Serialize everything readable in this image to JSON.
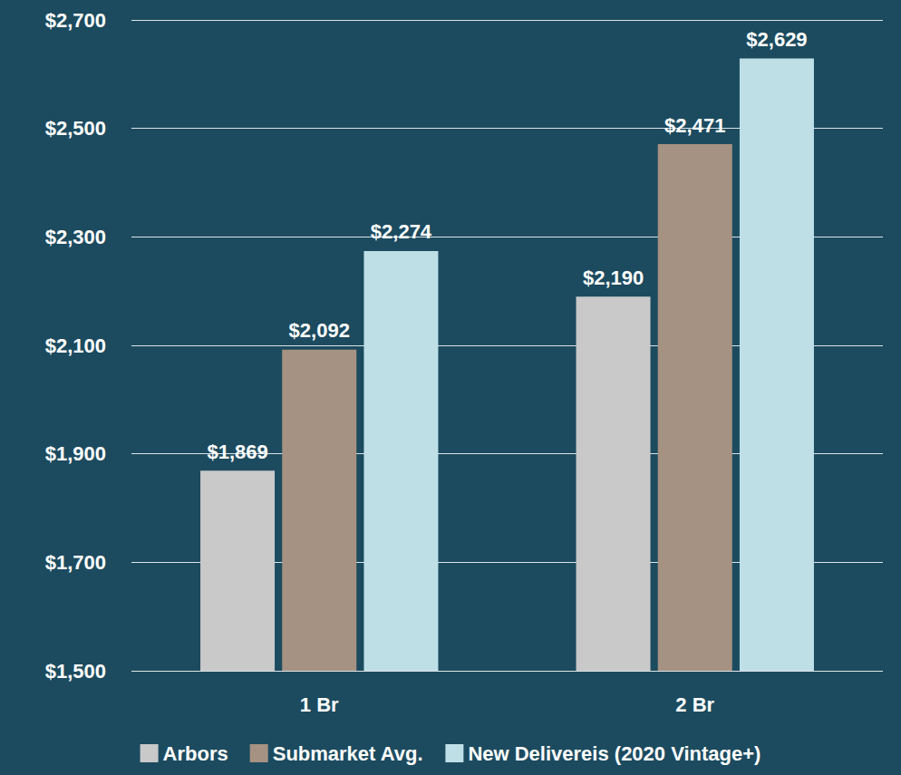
{
  "chart_data": {
    "type": "bar",
    "categories": [
      "1 Br",
      "2 Br"
    ],
    "series": [
      {
        "name": "Arbors",
        "color": "#c9c9c9",
        "values": [
          1869,
          2190
        ],
        "value_labels": [
          "$1,869",
          "$2,190"
        ]
      },
      {
        "name": "Submarket Avg.",
        "color": "#a69282",
        "values": [
          2092,
          2471
        ],
        "value_labels": [
          "$2,092",
          "$2,471"
        ]
      },
      {
        "name": "New Delivereis (2020 Vintage+)",
        "color": "#bfdfe7",
        "values": [
          2274,
          2629
        ],
        "value_labels": [
          "$2,274",
          "$2,629"
        ]
      }
    ],
    "ylim": [
      1500,
      2700
    ],
    "yticks": [
      {
        "value": 1500,
        "label": "$1,500"
      },
      {
        "value": 1700,
        "label": "$1,700"
      },
      {
        "value": 1900,
        "label": "$1,900"
      },
      {
        "value": 2100,
        "label": "$2,100"
      },
      {
        "value": 2300,
        "label": "$2,300"
      },
      {
        "value": 2500,
        "label": "$2,500"
      },
      {
        "value": 2700,
        "label": "$2,700"
      }
    ],
    "grid": true,
    "legend": "bottom",
    "data_labels": true
  }
}
